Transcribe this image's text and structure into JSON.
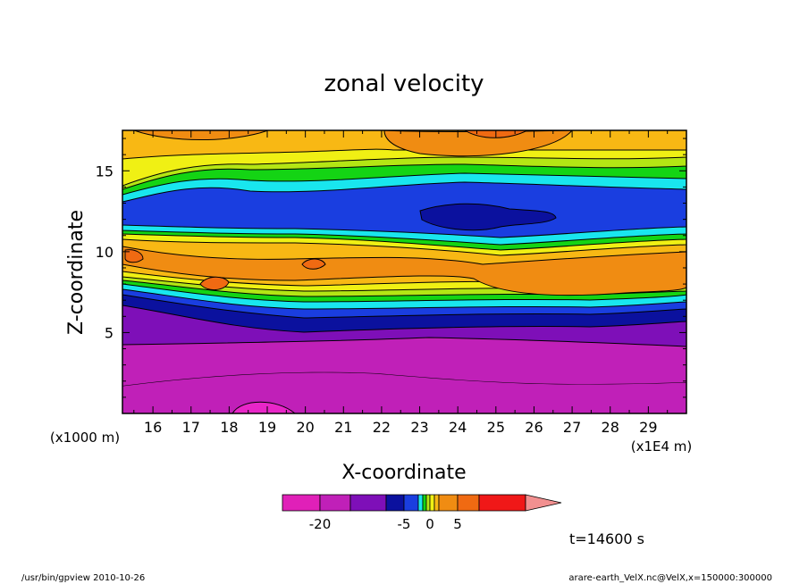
{
  "chart_data": {
    "type": "heatmap",
    "title": "zonal velocity",
    "xlabel": "X-coordinate",
    "ylabel": "Z-coordinate",
    "x_unit": "(x1E4 m)",
    "y_unit": "(x1000 m)",
    "xlim": [
      15.2,
      30.0
    ],
    "ylim": [
      0,
      17.5
    ],
    "x_ticks": [
      "16",
      "17",
      "18",
      "19",
      "20",
      "21",
      "22",
      "23",
      "24",
      "25",
      "26",
      "27",
      "28",
      "29"
    ],
    "y_ticks": [
      "5",
      "10",
      "15"
    ],
    "x": [
      15.2,
      30.0
    ],
    "z_bands": [
      {
        "z": 0.0,
        "velocity_class": "< -20"
      },
      {
        "z": 2.0,
        "velocity_class": "-20 to -15"
      },
      {
        "z": 4.5,
        "velocity_class": "-15 to -10"
      },
      {
        "z": 6.5,
        "velocity_class": "-10 to -5"
      },
      {
        "z": 9.0,
        "velocity_class": "0 to 10"
      },
      {
        "z": 12.5,
        "velocity_class": "-10 to -5"
      },
      {
        "z": 16.0,
        "velocity_class": "0 to 10"
      }
    ],
    "colorbar": {
      "labels": [
        "-20",
        "-5",
        "0",
        "5"
      ],
      "label_values": [
        -20,
        -5,
        0,
        5
      ],
      "colors": [
        "#e020b8",
        "#c020b8",
        "#7e0fb8",
        "#0b119e",
        "#1a3ee0",
        "#19e6ee",
        "#14d414",
        "#b4e614",
        "#f0f014",
        "#f8b814",
        "#f08c12",
        "#f06a12",
        "#f01818",
        "#f29090"
      ]
    }
  },
  "time_label": "t=14600 s",
  "footer": {
    "left": "/usr/bin/gpview   2010-10-26",
    "right": "arare-earth_VelX.nc@VelX,x=150000:300000"
  }
}
